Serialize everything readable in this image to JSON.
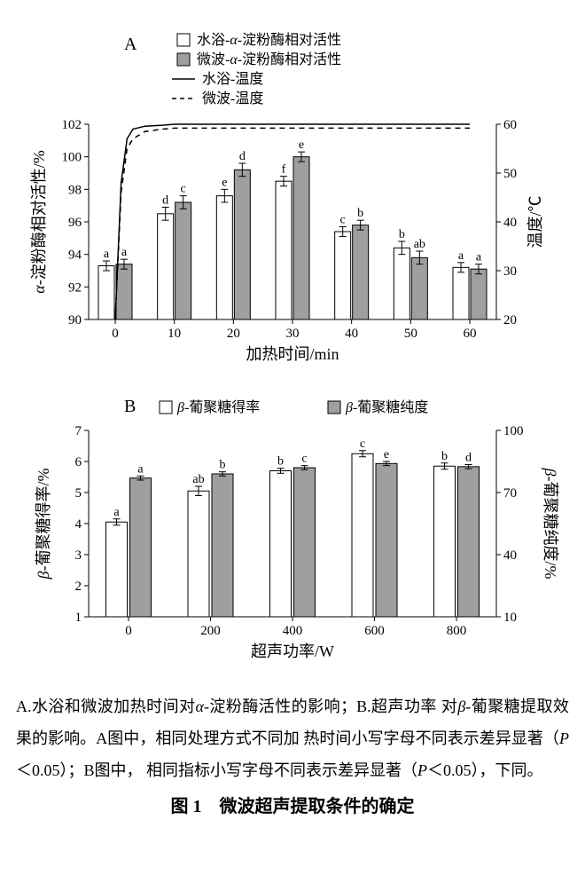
{
  "panelA": {
    "label": "A",
    "type": "grouped-bar-dual-axis-with-lines",
    "legend": {
      "bar_white": "水浴-α-淀粉酶相对活性",
      "bar_gray": "微波-α-淀粉酶相对活性",
      "line_solid": "水浴-温度",
      "line_dashed": "微波-温度"
    },
    "x_label": "加热时间/min",
    "y_left_label": "α-淀粉酶相对活性/%",
    "y_right_label": "温度/℃",
    "x_ticks": [
      0,
      10,
      20,
      30,
      40,
      50,
      60
    ],
    "y_left_lim": [
      90,
      102
    ],
    "y_left_step": 2,
    "y_right_lim": [
      20,
      60
    ],
    "y_right_step": 10,
    "bar_colors": {
      "white": "#ffffff",
      "gray": "#9f9f9f",
      "stroke": "#000000"
    },
    "error_cap_w": 4,
    "bars": {
      "white": [
        93.3,
        96.5,
        97.6,
        98.5,
        95.4,
        94.4,
        93.2
      ],
      "gray": [
        93.4,
        97.2,
        99.2,
        100.0,
        95.8,
        93.8,
        93.1
      ],
      "white_err": [
        0.3,
        0.4,
        0.4,
        0.3,
        0.3,
        0.4,
        0.3
      ],
      "gray_err": [
        0.3,
        0.4,
        0.4,
        0.3,
        0.3,
        0.4,
        0.3
      ],
      "white_sig": [
        "a",
        "d",
        "e",
        "f",
        "c",
        "b",
        "a"
      ],
      "gray_sig": [
        "a",
        "c",
        "d",
        "e",
        "b",
        "ab",
        "a"
      ]
    },
    "lines": {
      "solid_xy": [
        [
          0,
          20
        ],
        [
          1,
          48
        ],
        [
          2,
          57
        ],
        [
          3,
          59
        ],
        [
          5,
          59.6
        ],
        [
          8,
          59.8
        ],
        [
          10,
          60
        ],
        [
          60,
          60
        ]
      ],
      "dashed_xy": [
        [
          0,
          20
        ],
        [
          1,
          46
        ],
        [
          2,
          55
        ],
        [
          3,
          57
        ],
        [
          5,
          58.5
        ],
        [
          8,
          59
        ],
        [
          10,
          59.2
        ],
        [
          60,
          59.2
        ]
      ]
    },
    "font_sizes": {
      "axis_label": 18,
      "tick": 15,
      "sig": 14,
      "legend": 16
    },
    "plot_bg": "#ffffff",
    "axis_color": "#000000"
  },
  "panelB": {
    "label": "B",
    "type": "grouped-bar-dual-axis",
    "legend": {
      "bar_white": "β-葡聚糖得率",
      "bar_gray": "β-葡聚糖纯度"
    },
    "x_label": "超声功率/W",
    "y_left_label": "β-葡聚糖得率/%",
    "y_right_label": "β-葡聚糖纯度/%",
    "x_ticks": [
      0,
      200,
      400,
      600,
      800
    ],
    "y_left_lim": [
      1,
      7
    ],
    "y_left_step": 1,
    "y_right_lim": [
      10,
      100
    ],
    "y_right_step": 30,
    "bar_colors": {
      "white": "#ffffff",
      "gray": "#9f9f9f",
      "stroke": "#000000"
    },
    "error_cap_w": 4,
    "bars": {
      "white": [
        4.05,
        5.05,
        5.7,
        6.25,
        5.85
      ],
      "gray_pct": [
        77,
        79,
        82,
        84,
        82.5
      ],
      "white_err": [
        0.1,
        0.15,
        0.08,
        0.1,
        0.1
      ],
      "gray_err": [
        1,
        1,
        1,
        1,
        1
      ],
      "white_sig": [
        "a",
        "ab",
        "b",
        "c",
        "b"
      ],
      "gray_sig": [
        "a",
        "b",
        "c",
        "e",
        "d"
      ]
    },
    "font_sizes": {
      "axis_label": 18,
      "tick": 15,
      "sig": 14,
      "legend": 16
    },
    "plot_bg": "#ffffff",
    "axis_color": "#000000"
  },
  "caption": {
    "line1_a": "A.水浴和微波加热时间对",
    "line1_b": "α",
    "line1_c": "-淀粉酶活性的影响；B.超声功率",
    "line2_a": "对",
    "line2_b": "β",
    "line2_c": "-葡聚糖提取效果的影响。A图中，相同处理方式不同加",
    "line3": "热时间小写字母不同表示差异显著（",
    "line3_p": "P",
    "line3_end": "＜0.05）；B图中，",
    "line4": "相同指标小写字母不同表示差异显著（",
    "line4_p": "P",
    "line4_end": "＜0.05），下同。"
  },
  "figure_title": "图 1　微波超声提取条件的确定"
}
